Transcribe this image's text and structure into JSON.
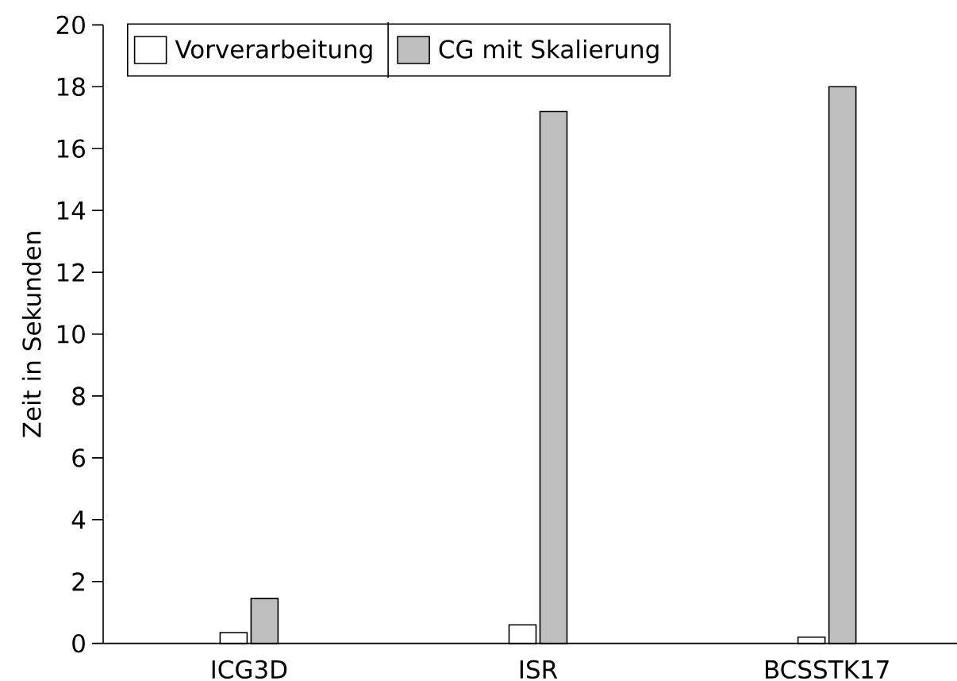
{
  "chart_data": {
    "type": "bar",
    "ylabel": "Zeit in Sekunden",
    "categories": [
      "ICG3D",
      "ISR",
      "BCSSTK17"
    ],
    "series": [
      {
        "name": "Vorverarbeitung",
        "color": "#ffffff",
        "values": [
          0.35,
          0.6,
          0.2
        ]
      },
      {
        "name": "CG mit Skalierung",
        "color": "#bfbfbf",
        "values": [
          1.45,
          17.2,
          18.0
        ]
      }
    ],
    "ylim": [
      0,
      20
    ],
    "yticks": [
      0,
      2,
      4,
      6,
      8,
      10,
      12,
      14,
      16,
      18,
      20
    ],
    "legend": "top left"
  }
}
